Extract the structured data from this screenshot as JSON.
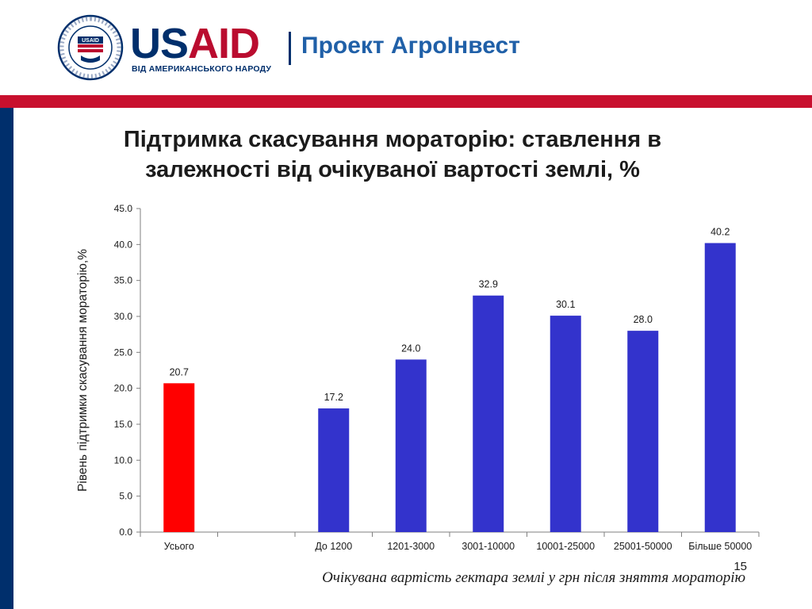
{
  "header": {
    "seal_text": "UNITED STATES AGENCY · INTERNATIONAL DEVELOPMENT",
    "seal_center": "USAID",
    "usaid_us": "US",
    "usaid_aid": "AID",
    "usaid_tagline": "ВІД АМЕРИКАНСЬКОГО НАРОДУ",
    "project_name": "Проект АгроІнвест"
  },
  "colors": {
    "usaid_blue": "#002f6c",
    "usaid_red": "#ba0c2f",
    "bar_total": "#ff0000",
    "bar_group": "#3333cc"
  },
  "slide": {
    "title_line1": "Підтримка скасування мораторію: ставлення в",
    "title_line2": "залежності від очікуваної вартості землі, %",
    "footer_caption": "Очікувана вартість гектара землі у грн після зняття мораторію",
    "page_number": "15"
  },
  "chart_data": {
    "type": "bar",
    "ylabel": "Рівень підтримки скасування мораторію,%",
    "xlabel": "Очікувана вартість гектара землі у грн після зняття мораторію",
    "ylim": [
      0,
      45
    ],
    "yticks": [
      "0.0",
      "5.0",
      "10.0",
      "15.0",
      "20.0",
      "25.0",
      "30.0",
      "35.0",
      "40.0",
      "45.0"
    ],
    "categories": [
      "Усього",
      "",
      "До 1200",
      "1201-3000",
      "3001-10000",
      "10001-25000",
      "25001-50000",
      "Більше 50000"
    ],
    "values": [
      20.7,
      null,
      17.2,
      24.0,
      32.9,
      30.1,
      28.0,
      40.2
    ],
    "value_labels": [
      "20.7",
      "",
      "17.2",
      "24.0",
      "32.9",
      "30.1",
      "28.0",
      "40.2"
    ],
    "bar_colors": [
      "#ff0000",
      null,
      "#3333cc",
      "#3333cc",
      "#3333cc",
      "#3333cc",
      "#3333cc",
      "#3333cc"
    ],
    "grid": false,
    "legend": "none"
  }
}
